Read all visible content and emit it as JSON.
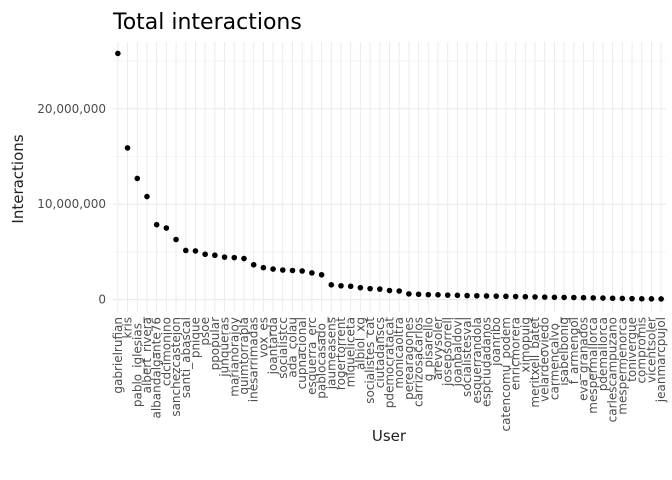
{
  "chart_data": {
    "type": "scatter",
    "title": "Total interactions",
    "xlabel": "User",
    "ylabel": "Interactions",
    "ylim": [
      -1300000,
      27000000
    ],
    "yticks": [
      0,
      10000000,
      20000000
    ],
    "ytick_labels": [
      "0",
      "10,000,000",
      "20,000,000"
    ],
    "grid": true,
    "point_color": "#000000",
    "grid_color": "#ebebeb",
    "categories": [
      "gabrielrufian",
      "kris",
      "pablo_iglesias_",
      "albert_rivera",
      "albandalgante76",
      "cdcimonino",
      "sanchezcastejon",
      "santi_abascal",
      "pnique",
      "psoe",
      "ppopular",
      "junqueras",
      "marianorajoy",
      "quimtorrapla",
      "inesarrimadas",
      "vox_es",
      "joantarda",
      "socialistcc",
      "ada_colau",
      "cupnacional",
      "esquerra_erc",
      "pablocasado_",
      "jaumeasens",
      "rogertorrent",
      "miqueliceta",
      "albiol_xg",
      "socialistes_cat",
      "ciutadanscs",
      "pdemocratacat",
      "monicaoltra",
      "perearagones",
      "carrizosacarlos",
      "g_pisarello",
      "arevysoler",
      "josepsorrell",
      "joanbaldovi",
      "socialistesval",
      "esquerrandola",
      "espciudadanos",
      "joanribo",
      "catencomu_podem",
      "enricmorera",
      "ximopuig",
      "meritxell_batet",
      "velardeoviedo",
      "carmencalvo_",
      "isabelbonig",
      "f_armengol",
      "eva_granados",
      "mespermallorca",
      "pdemallorca",
      "carlescampuzano",
      "mespermenorca",
      "tonivergue",
      "compromis",
      "vicentsoler",
      "jeanmarcpujol"
    ],
    "values": [
      25800000,
      15900000,
      12700000,
      10800000,
      7850000,
      7500000,
      6300000,
      5150000,
      5100000,
      4750000,
      4650000,
      4450000,
      4400000,
      4300000,
      3650000,
      3350000,
      3200000,
      3100000,
      3050000,
      3000000,
      2800000,
      2600000,
      1550000,
      1450000,
      1400000,
      1250000,
      1150000,
      1100000,
      950000,
      900000,
      600000,
      560000,
      520000,
      500000,
      470000,
      450000,
      420000,
      400000,
      380000,
      360000,
      340000,
      320000,
      300000,
      280000,
      260000,
      240000,
      230000,
      220000,
      200000,
      180000,
      160000,
      140000,
      120000,
      100000,
      90000,
      80000,
      70000
    ]
  }
}
